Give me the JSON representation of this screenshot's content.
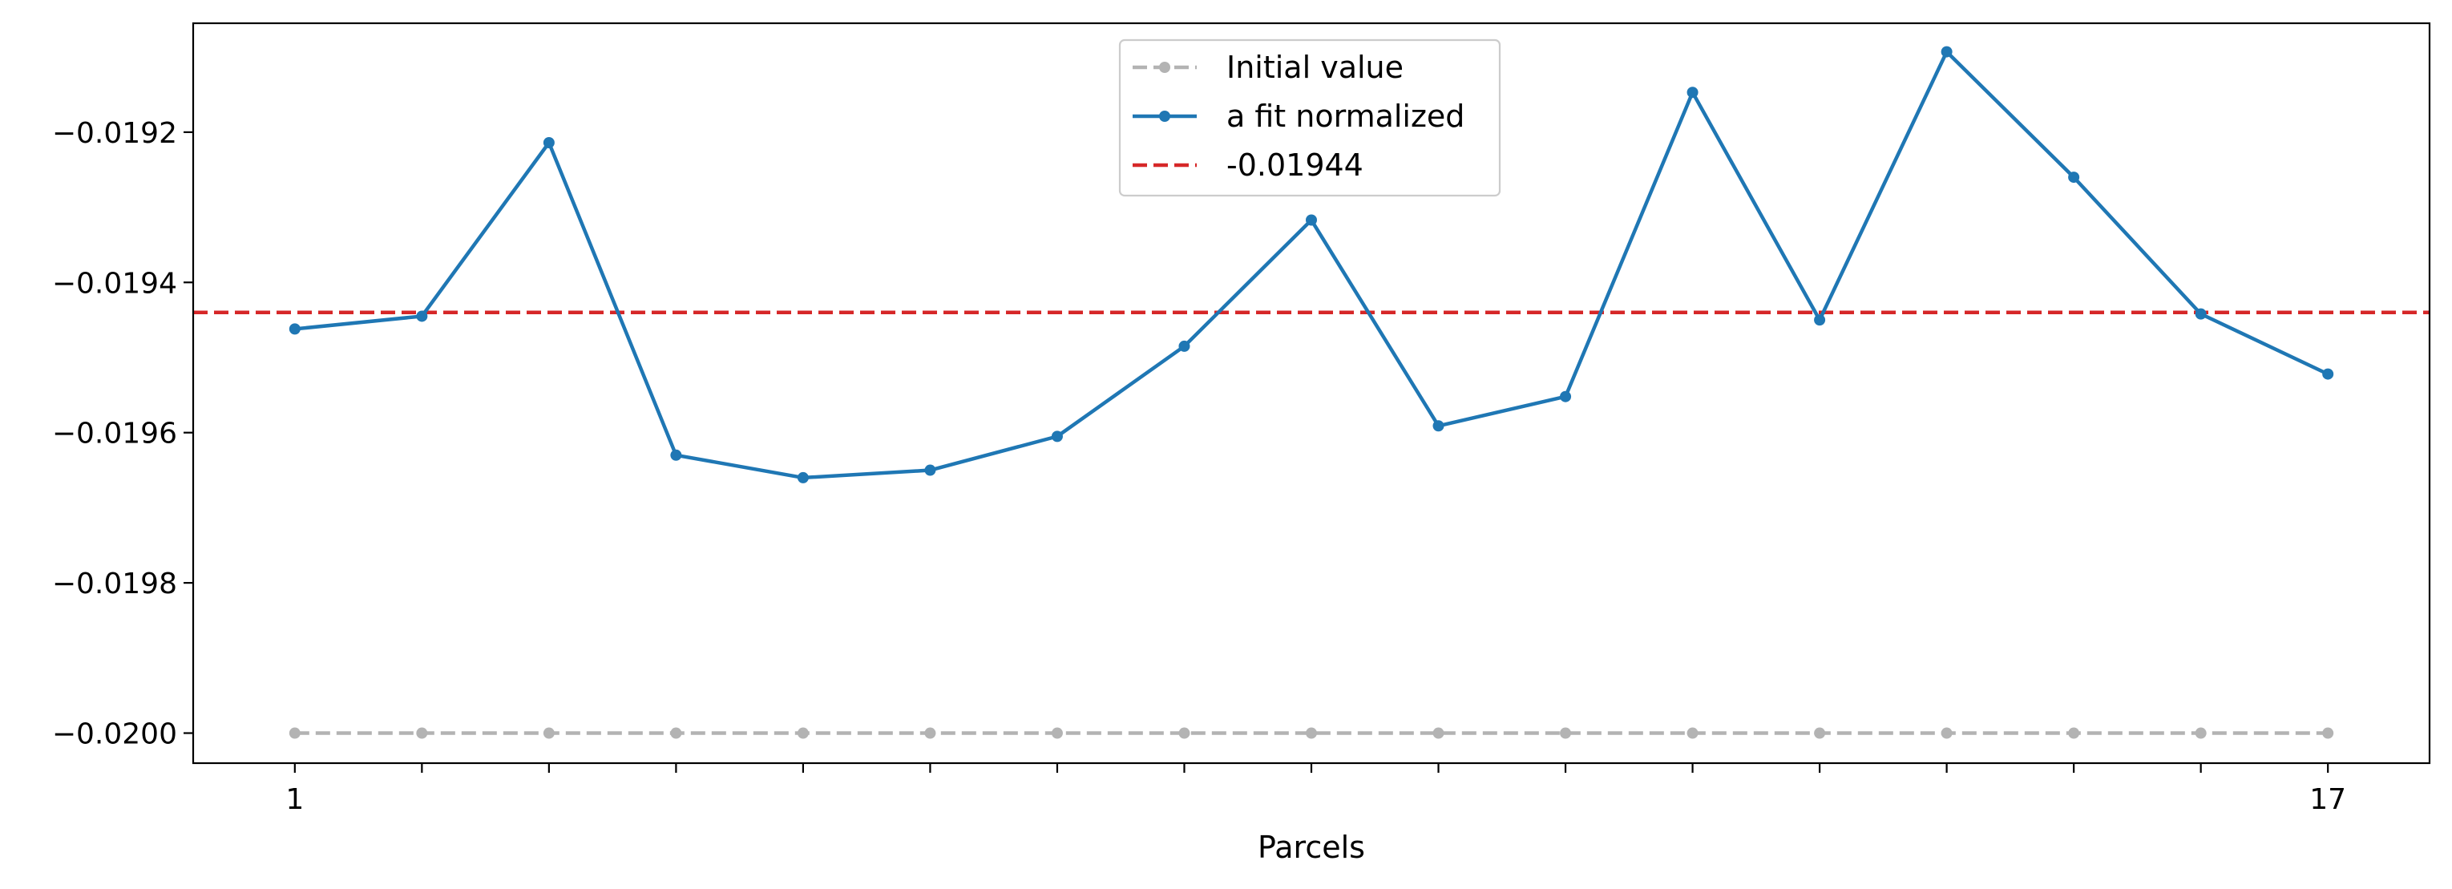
{
  "chart_data": {
    "type": "line",
    "title": "",
    "xlabel": "Parcels",
    "ylabel": "",
    "x": [
      1,
      2,
      3,
      4,
      5,
      6,
      7,
      8,
      9,
      10,
      11,
      12,
      13,
      14,
      15,
      16,
      17
    ],
    "xlim": [
      0.2,
      17.8
    ],
    "ylim": [
      -0.02004,
      -0.019055
    ],
    "x_tick_labels": [
      {
        "x": 1,
        "label": "1"
      },
      {
        "x": 17,
        "label": "17"
      }
    ],
    "x_minor_ticks": [
      2,
      3,
      4,
      5,
      6,
      7,
      8,
      9,
      10,
      11,
      12,
      13,
      14,
      15,
      16
    ],
    "y_ticks": [
      {
        "value": -0.0192,
        "label": "−0.0192"
      },
      {
        "value": -0.0194,
        "label": "−0.0194"
      },
      {
        "value": -0.0196,
        "label": "−0.0196"
      },
      {
        "value": -0.0198,
        "label": "−0.0198"
      },
      {
        "value": -0.02,
        "label": "−0.0200"
      }
    ],
    "grid": false,
    "legend_position": "top-center",
    "series": [
      {
        "name": "Initial value",
        "style": "dashed-with-markers",
        "color": "#b3b3b3",
        "values": [
          -0.02,
          -0.02,
          -0.02,
          -0.02,
          -0.02,
          -0.02,
          -0.02,
          -0.02,
          -0.02,
          -0.02,
          -0.02,
          -0.02,
          -0.02,
          -0.02,
          -0.02,
          -0.02,
          -0.02
        ]
      },
      {
        "name": "a fit normalized",
        "style": "solid-with-markers",
        "color": "#1f77b4",
        "values": [
          -0.019462,
          -0.019445,
          -0.019214,
          -0.01963,
          -0.01966,
          -0.01965,
          -0.019605,
          -0.019485,
          -0.019317,
          -0.019591,
          -0.019552,
          -0.019147,
          -0.01945,
          -0.019093,
          -0.01926,
          -0.019442,
          -0.019522
        ]
      }
    ],
    "reference_lines": [
      {
        "name": "-0.01944",
        "value": -0.01944,
        "style": "dashed",
        "color": "#d62728"
      }
    ]
  }
}
